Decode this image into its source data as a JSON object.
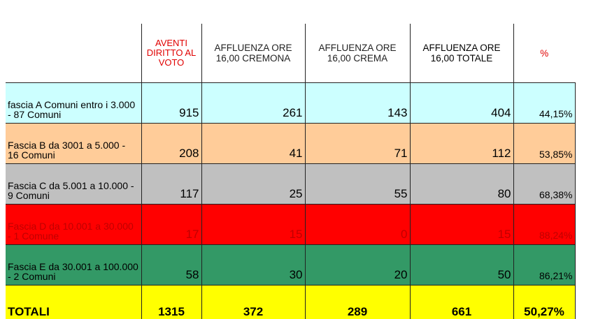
{
  "headers": {
    "aventi": "AVENTI DIRITTO AL VOTO",
    "cremona": "AFFLUENZA ORE 16,00 CREMONA",
    "crema": "AFFLUENZA ORE 16,00 CREMA",
    "totale": "AFFLUENZA ORE 16,00 TOTALE",
    "pct": "%"
  },
  "rows": [
    {
      "label": "fascia  A Comuni entro i 3.000  - 87 Comuni",
      "aventi": "915",
      "cremona": "261",
      "crema": "143",
      "totale": "404",
      "pct": "44,15%",
      "color": "#ccffff"
    },
    {
      "label": " Fascia B da 3001 a 5.000 - 16 Comuni",
      "aventi": "208",
      "cremona": "41",
      "crema": "71",
      "totale": "112",
      "pct": "53,85%",
      "color": "#ffcc99"
    },
    {
      "label": "Fascia C da 5.001 a 10.000 - 9 Comuni",
      "aventi": "117",
      "cremona": "25",
      "crema": "55",
      "totale": "80",
      "pct": "68,38%",
      "color": "#c0c0c0"
    },
    {
      "label": "Fascia D da 10.001 a 30.000 - 1 Comune",
      "aventi": "17",
      "cremona": "15",
      "crema": "0",
      "totale": "15",
      "pct": "88,24%",
      "color": "#ff0000"
    },
    {
      "label": "Fascia E da 30.001 a 100.000 - 2 Comuni",
      "aventi": "58",
      "cremona": "30",
      "crema": "20",
      "totale": "50",
      "pct": "86,21%",
      "color": "#339966"
    }
  ],
  "totals": {
    "label": "TOTALI",
    "aventi": "1315",
    "cremona": "372",
    "crema": "289",
    "totale": "661",
    "pct": "50,27%",
    "color": "#ffff00"
  }
}
